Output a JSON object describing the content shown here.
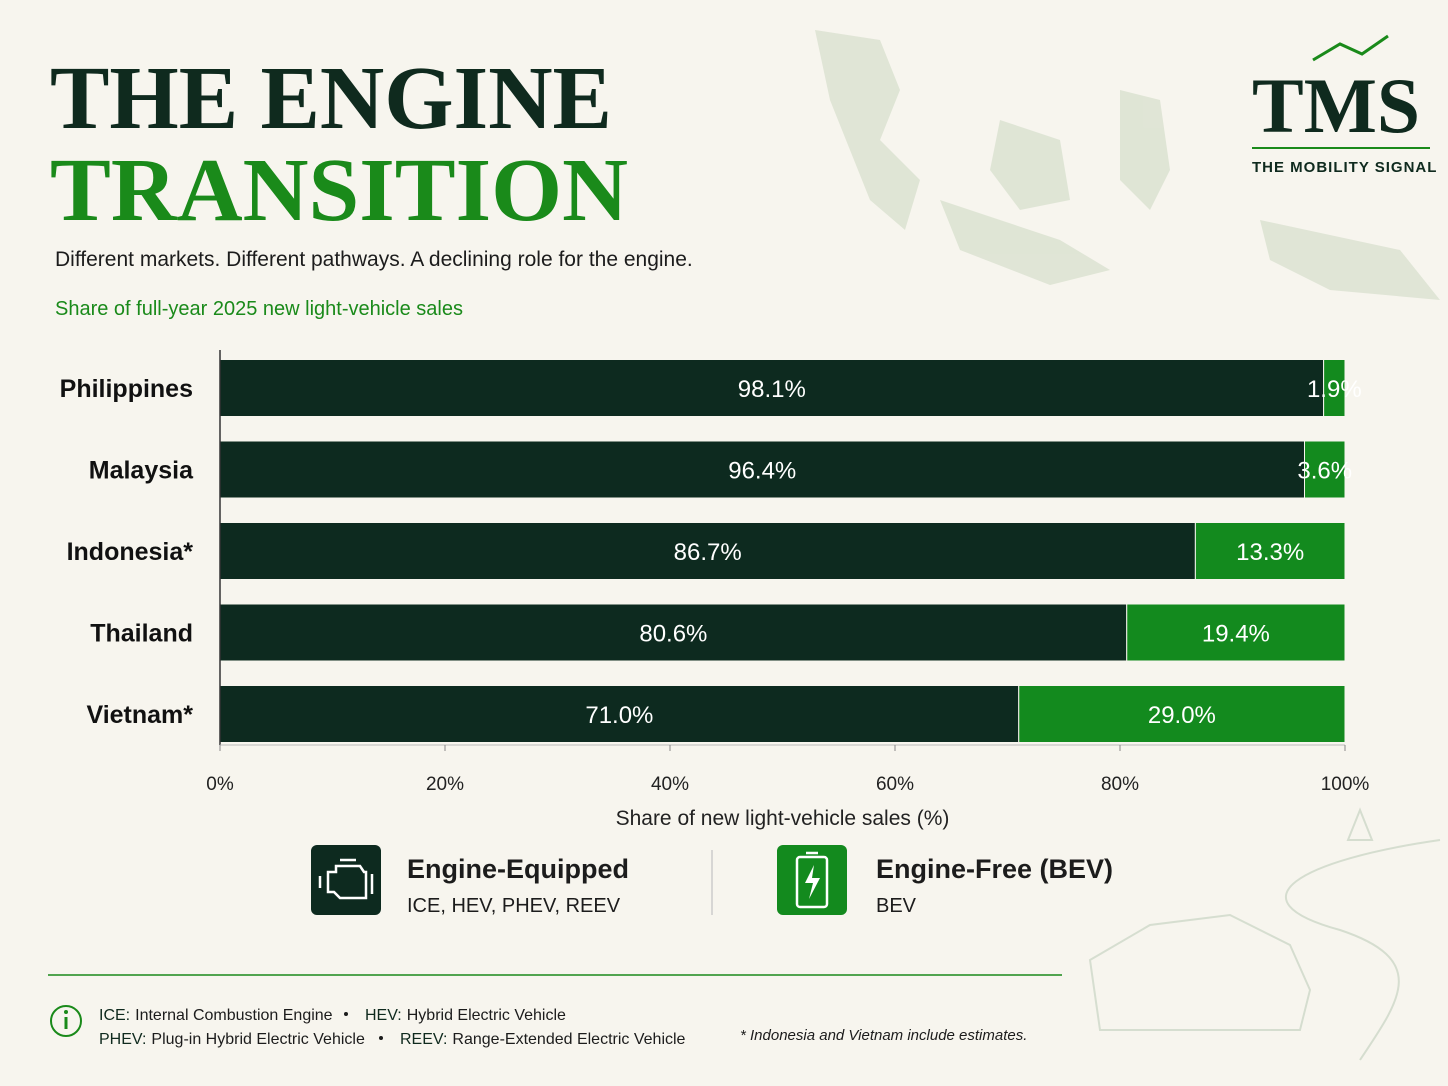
{
  "header": {
    "title_line1": "THE ENGINE",
    "title_line2": "TRANSITION",
    "subtitle": "Different markets. Different pathways. A declining role for the engine.",
    "logo": "TMS",
    "logo_tagline": "THE MOBILITY SIGNAL"
  },
  "chart_data": {
    "type": "stacked-bar-horizontal",
    "title": "Share of full-year 2025 new light-vehicle sales",
    "categories": [
      "Philippines",
      "Malaysia",
      "Indonesia*",
      "Thailand",
      "Vietnam*"
    ],
    "series": [
      {
        "name": "Engine-Equipped",
        "color": "#0d2a1f",
        "values": [
          98.1,
          96.4,
          86.7,
          80.6,
          71.0
        ],
        "value_labels": [
          "98.1%",
          "96.4%",
          "86.7%",
          "80.6%",
          "71.0%"
        ]
      },
      {
        "name": "Engine-Free (BEV)",
        "color": "#138a1e",
        "values": [
          1.9,
          3.6,
          13.3,
          19.4,
          29.0
        ],
        "value_labels": [
          "1.9%",
          "3.6%",
          "13.3%",
          "19.4%",
          "29.0%"
        ]
      }
    ],
    "xlim": [
      0,
      100
    ],
    "xticks": [
      {
        "value": 0,
        "label": "0%"
      },
      {
        "value": 20,
        "label": "20%"
      },
      {
        "value": 40,
        "label": "40%"
      },
      {
        "value": 60,
        "label": "60%"
      },
      {
        "value": 80,
        "label": "80%"
      },
      {
        "value": 100,
        "label": "100%"
      }
    ],
    "x_label": "Share of new light-vehicle sales (%)"
  },
  "legend_details": [
    "ICE, HEV, PHEV, REEV",
    "BEV"
  ],
  "glossary": [
    {
      "term": "ICE:",
      "definition": "Internal Combustion Engine"
    },
    {
      "term": "HEV:",
      "definition": "Hybrid Electric Vehicle"
    },
    {
      "term": "PHEV:",
      "definition": "Plug-in Hybrid Electric Vehicle"
    },
    {
      "term": "REEV:",
      "definition": "Range-Extended Electric Vehicle"
    }
  ],
  "footnote": "* Indonesia and Vietnam include estimates."
}
